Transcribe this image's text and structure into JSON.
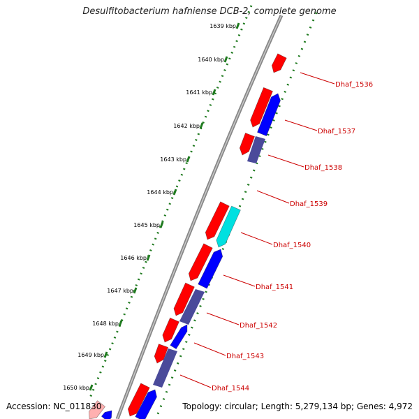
{
  "title": "Desulfitobacterium hafniense DCB-2, complete genome",
  "accession": "Accession: NC_011830",
  "summary": "Topology: circular; Length: 5,279,134 bp; Genes: 4,972",
  "colors": {
    "forward_cds": "#ff0000",
    "reverse_cds": "#0000ff",
    "other_feature": "#4a4a9a",
    "rna": "#00e0e0",
    "backbone": "#999999",
    "tick": "#1f7a1f",
    "label": "#cc0000"
  },
  "kbp_ticks": [
    "1639 kbp",
    "1640 kbp",
    "1641 kbp",
    "1642 kbp",
    "1643 kbp",
    "1644 kbp",
    "1645 kbp",
    "1646 kbp",
    "1647 kbp",
    "1648 kbp",
    "1649 kbp",
    "1650 kbp"
  ],
  "gene_labels": [
    "Dhaf_1536",
    "Dhaf_1537",
    "Dhaf_1538",
    "Dhaf_1539",
    "Dhaf_1540",
    "Dhaf_1541",
    "Dhaf_1542",
    "Dhaf_1543",
    "Dhaf_1544"
  ]
}
